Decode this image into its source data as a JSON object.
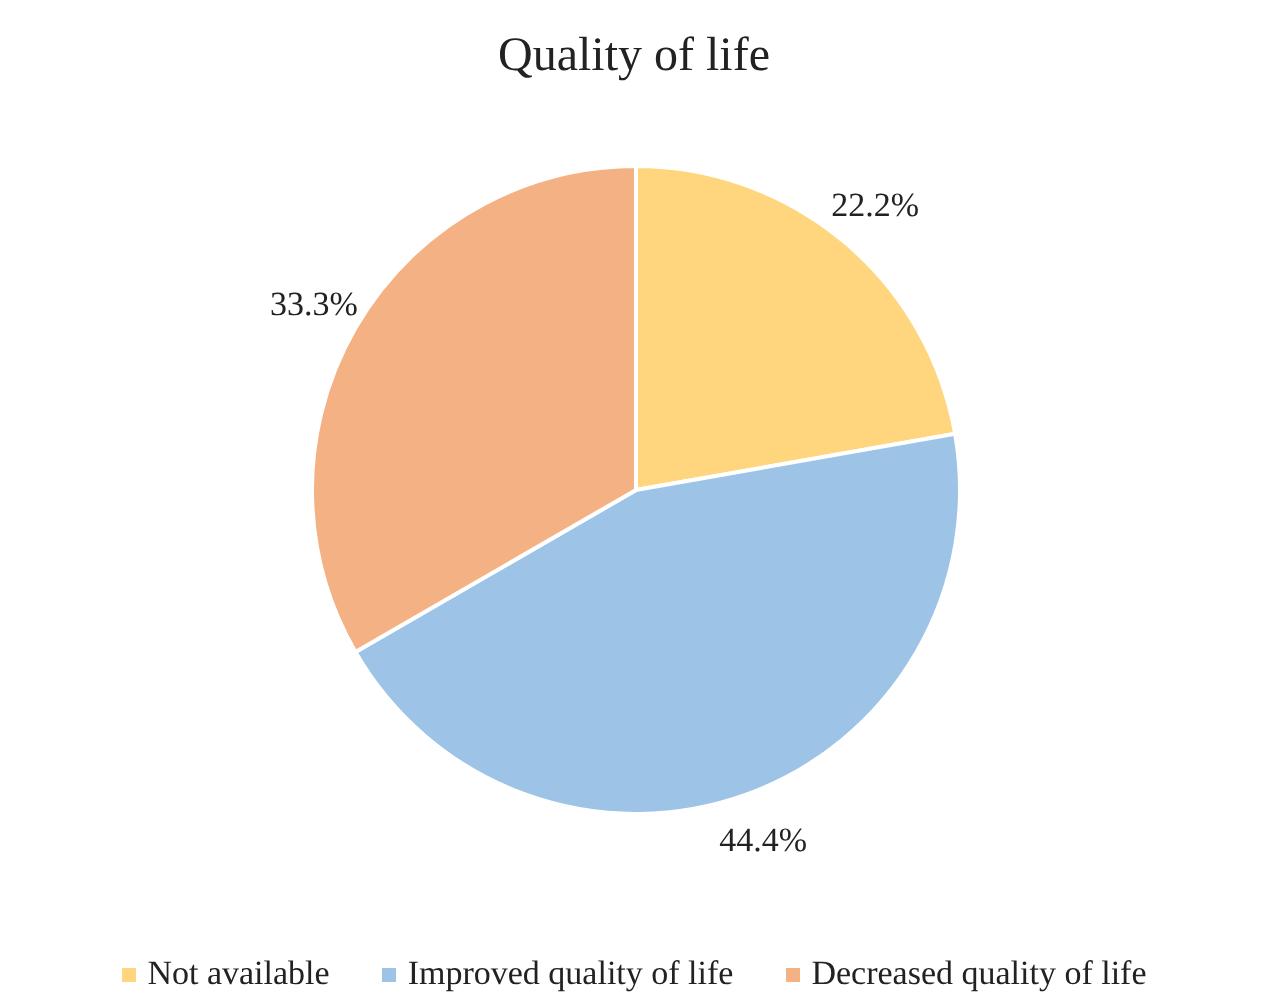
{
  "chart_data": {
    "type": "pie",
    "title": "Quality of life",
    "categories": [
      "Not available",
      "Improved quality of life",
      "Decreased quality of life"
    ],
    "values": [
      22.2,
      44.4,
      33.3
    ],
    "value_labels": [
      "22.2%",
      "44.4%",
      "33.3%"
    ],
    "colors": [
      "#ffd57e",
      "#9dc3e6",
      "#f4b183"
    ],
    "legend": "bottom"
  }
}
